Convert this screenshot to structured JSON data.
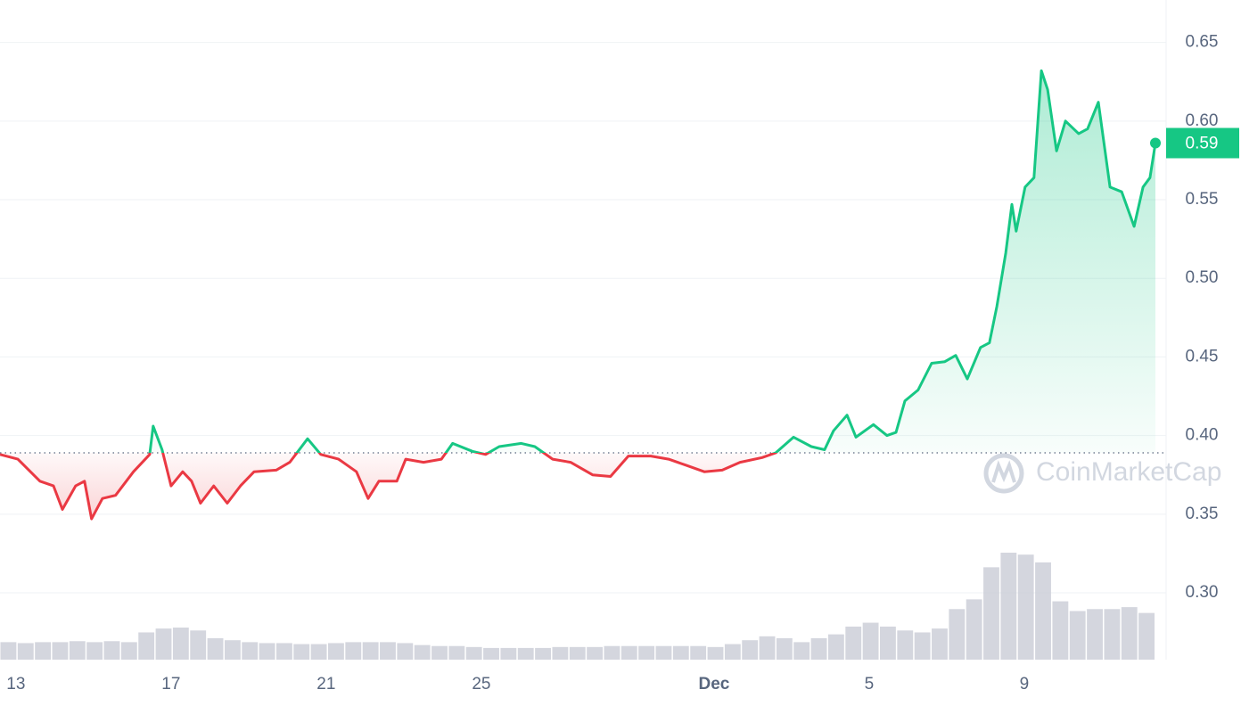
{
  "chart_data": {
    "type": "line",
    "x": [
      -0.41,
      0.05,
      0.62,
      0.97,
      1.2,
      1.54,
      1.77,
      1.95,
      2.23,
      2.57,
      3.03,
      3.45,
      3.54,
      3.77,
      4.0,
      4.3,
      4.53,
      4.76,
      5.1,
      5.45,
      5.79,
      6.14,
      6.71,
      7.06,
      7.52,
      7.86,
      8.32,
      8.78,
      9.08,
      9.36,
      9.82,
      10.05,
      10.51,
      10.97,
      11.26,
      11.77,
      12.11,
      12.46,
      13.03,
      13.38,
      13.84,
      14.3,
      14.87,
      15.33,
      15.79,
      16.37,
      16.83,
      17.29,
      17.75,
      18.21,
      18.67,
      19.24,
      19.59,
      20.05,
      20.51,
      20.85,
      21.08,
      21.43,
      21.66,
      22.11,
      22.46,
      22.69,
      22.92,
      23.26,
      23.61,
      23.95,
      24.23,
      24.53,
      24.87,
      25.1,
      25.29,
      25.52,
      25.68,
      25.79,
      26.02,
      26.25,
      26.44,
      26.6,
      26.83,
      27.06,
      27.4,
      27.63,
      27.91,
      28.21,
      28.51,
      28.83,
      29.06,
      29.24,
      29.38
    ],
    "values": [
      0.388,
      0.385,
      0.371,
      0.368,
      0.353,
      0.368,
      0.371,
      0.347,
      0.36,
      0.362,
      0.377,
      0.388,
      0.406,
      0.391,
      0.368,
      0.377,
      0.371,
      0.357,
      0.368,
      0.357,
      0.368,
      0.377,
      0.378,
      0.383,
      0.398,
      0.388,
      0.385,
      0.377,
      0.36,
      0.371,
      0.371,
      0.385,
      0.383,
      0.385,
      0.395,
      0.39,
      0.388,
      0.393,
      0.395,
      0.393,
      0.385,
      0.383,
      0.375,
      0.374,
      0.387,
      0.387,
      0.385,
      0.381,
      0.377,
      0.378,
      0.383,
      0.386,
      0.389,
      0.399,
      0.393,
      0.391,
      0.403,
      0.413,
      0.399,
      0.407,
      0.4,
      0.402,
      0.422,
      0.429,
      0.446,
      0.447,
      0.451,
      0.436,
      0.456,
      0.459,
      0.482,
      0.516,
      0.547,
      0.53,
      0.558,
      0.564,
      0.632,
      0.62,
      0.581,
      0.6,
      0.592,
      0.595,
      0.612,
      0.558,
      0.555,
      0.533,
      0.558,
      0.564,
      0.586
    ],
    "baseline": 0.389,
    "up_color": "#16c784",
    "down_color": "#ea3943",
    "current_price": {
      "value": 0.586,
      "label": "0.59"
    },
    "volume": {
      "color": "#c9ccd6",
      "values": [
        18,
        17,
        18,
        18,
        19,
        18,
        19,
        18,
        28,
        32,
        33,
        30,
        22,
        20,
        18,
        17,
        17,
        16,
        16,
        17,
        18,
        18,
        18,
        17,
        15,
        14,
        14,
        13,
        12,
        12,
        12,
        12,
        13,
        13,
        13,
        14,
        14,
        14,
        14,
        14,
        14,
        13,
        16,
        20,
        24,
        22,
        18,
        22,
        26,
        34,
        38,
        34,
        30,
        28,
        32,
        52,
        62,
        95,
        110,
        108,
        100,
        60,
        50,
        52,
        52,
        54,
        48
      ]
    },
    "xlim": [
      -0.41,
      29.38
    ],
    "xticks": [
      {
        "value": 0,
        "label": "13"
      },
      {
        "value": 4,
        "label": "17"
      },
      {
        "value": 8,
        "label": "21"
      },
      {
        "value": 12,
        "label": "25"
      },
      {
        "value": 18,
        "label": "Dec"
      },
      {
        "value": 22,
        "label": "5"
      },
      {
        "value": 26,
        "label": "9"
      }
    ],
    "ylim": [
      0.2575,
      0.677
    ],
    "yticks": [
      {
        "value": 0.3,
        "label": "0.30"
      },
      0.35,
      {
        "value": 0.4,
        "label": "0.40"
      },
      0.45,
      {
        "value": 0.5,
        "label": "0.50"
      },
      0.55,
      {
        "value": 0.6,
        "label": "0.60"
      },
      0.65
    ],
    "grid": true,
    "watermark": "CoinMarketCap"
  }
}
